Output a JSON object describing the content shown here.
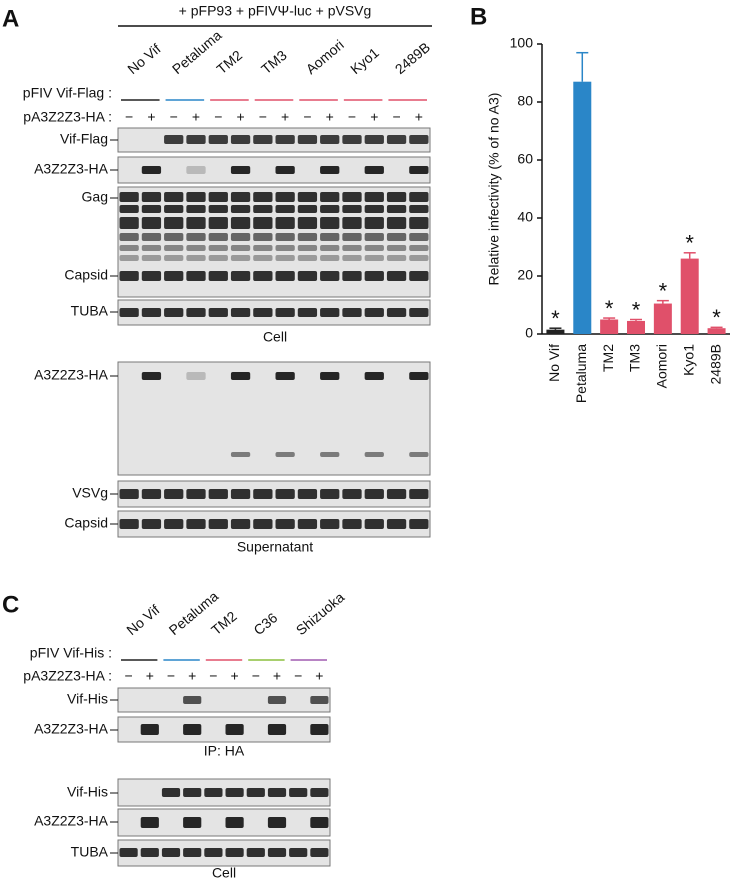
{
  "panel_a": {
    "letter": "A",
    "treatment": "+ pFP93 + pFIVΨ-luc + pVSVg",
    "vif_row_label": "pFIV Vif-Flag :",
    "a3_row_label": "pA3Z2Z3-HA :",
    "vifs": [
      {
        "name": "No Vif",
        "color": "#222222"
      },
      {
        "name": "Petaluma",
        "color": "#2a86c8"
      },
      {
        "name": "TM2",
        "color": "#e0506a"
      },
      {
        "name": "TM3",
        "color": "#e0506a"
      },
      {
        "name": "Aomori",
        "color": "#e0506a"
      },
      {
        "name": "Kyo1",
        "color": "#e0506a"
      },
      {
        "name": "2489B",
        "color": "#e0506a"
      }
    ],
    "a3_signs": [
      "−",
      "+",
      "−",
      "+",
      "−",
      "+",
      "−",
      "+",
      "−",
      "+",
      "−",
      "+",
      "−",
      "+"
    ],
    "cell_blots": [
      "Vif-Flag",
      "A3Z2Z3-HA",
      "Gag",
      "Capsid",
      "TUBA"
    ],
    "cell_label": "Cell",
    "sup_blots": [
      "A3Z2Z3-HA",
      "VSVg",
      "Capsid"
    ],
    "sup_label": "Supernatant"
  },
  "chart_data": {
    "type": "bar",
    "letter": "B",
    "y_label": "Relative infectivity (% of no A3)",
    "categories": [
      "No Vif",
      "Petaluma",
      "TM2",
      "TM3",
      "Aomori",
      "Kyo1",
      "2489B"
    ],
    "colors": [
      "#222222",
      "#2a86c8",
      "#e0506a",
      "#e0506a",
      "#e0506a",
      "#e0506a",
      "#e0506a"
    ],
    "values": [
      1.5,
      87,
      5,
      4.5,
      10.5,
      26,
      2
    ],
    "errors": [
      0.5,
      10,
      0.5,
      0.5,
      1,
      2,
      0.3
    ],
    "significance": [
      "*",
      null,
      "*",
      "*",
      "*",
      "*",
      "*"
    ],
    "ylim": [
      0,
      100
    ],
    "yticks": [
      0,
      20,
      40,
      60,
      80,
      100
    ]
  },
  "panel_c": {
    "letter": "C",
    "vif_row_label": "pFIV Vif-His :",
    "a3_row_label": "pA3Z2Z3-HA :",
    "vifs": [
      {
        "name": "No Vif",
        "color": "#222222"
      },
      {
        "name": "Petaluma",
        "color": "#2a86c8"
      },
      {
        "name": "TM2",
        "color": "#e0506a"
      },
      {
        "name": "C36",
        "color": "#8cbf3f"
      },
      {
        "name": "Shizuoka",
        "color": "#a05bb0"
      }
    ],
    "a3_signs": [
      "−",
      "+",
      "−",
      "+",
      "−",
      "+",
      "−",
      "+",
      "−",
      "+"
    ],
    "ip_blots": [
      "Vif-His",
      "A3Z2Z3-HA"
    ],
    "ip_label": "IP: HA",
    "cell_blots": [
      "Vif-His",
      "A3Z2Z3-HA",
      "TUBA"
    ],
    "cell_label": "Cell"
  }
}
